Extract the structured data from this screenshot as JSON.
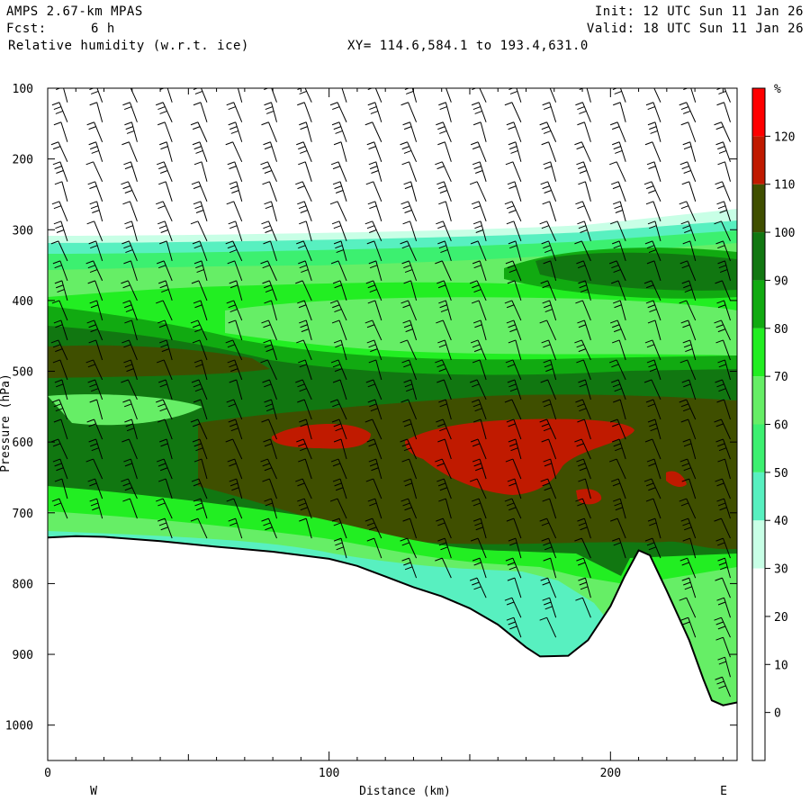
{
  "header": {
    "model": "AMPS 2.67-km MPAS",
    "fcst_label": "Fcst:",
    "fcst_value": "6 h",
    "field": "Relative humidity (w.r.t. ice)",
    "xy": "XY= 114.6,584.1 to 193.4,631.0",
    "init": "Init: 12 UTC Sun 11 Jan 26",
    "valid": "Valid: 18 UTC Sun 11 Jan 26"
  },
  "chart_data": {
    "type": "heatmap",
    "subtype": "vertical cross-section (filled contours with wind barbs)",
    "title": "Relative humidity (w.r.t. ice)",
    "xlabel": "Distance (km)",
    "ylabel": "Pressure (hPa)",
    "xlim": [
      0,
      245
    ],
    "ylim": [
      1050,
      100
    ],
    "x_ticks": [
      "0",
      "100",
      "200"
    ],
    "y_ticks": [
      "100",
      "200",
      "300",
      "400",
      "500",
      "600",
      "700",
      "800",
      "900",
      "1000"
    ],
    "x_end_labels": {
      "left": "W",
      "right": "E"
    },
    "colorbar": {
      "unit": "%",
      "levels": [
        0,
        10,
        20,
        30,
        40,
        50,
        60,
        70,
        80,
        90,
        100,
        110,
        120
      ],
      "level_labels": [
        "0",
        "10",
        "20",
        "30",
        "40",
        "50",
        "60",
        "70",
        "80",
        "90",
        "100",
        "110",
        "120"
      ],
      "colors": [
        "#ffffff",
        "#ffffff",
        "#ffffff",
        "#ffffff",
        "#c8ffe6",
        "#58f0c0",
        "#3cf070",
        "#66ee66",
        "#22ee22",
        "#11aa11",
        "#117711",
        "#3f4f00",
        "#c01a00",
        "#ff0000"
      ]
    },
    "moisture_top_hPa": [
      [
        0,
        278
      ],
      [
        50,
        276
      ],
      [
        100,
        275
      ],
      [
        150,
        275
      ],
      [
        200,
        272
      ],
      [
        245,
        268
      ]
    ],
    "terrain_hPa": [
      [
        0,
        735
      ],
      [
        10,
        733
      ],
      [
        20,
        734
      ],
      [
        40,
        740
      ],
      [
        60,
        748
      ],
      [
        80,
        755
      ],
      [
        100,
        765
      ],
      [
        110,
        775
      ],
      [
        120,
        790
      ],
      [
        130,
        805
      ],
      [
        140,
        818
      ],
      [
        150,
        835
      ],
      [
        160,
        858
      ],
      [
        170,
        890
      ],
      [
        175,
        903
      ],
      [
        185,
        902
      ],
      [
        192,
        880
      ],
      [
        200,
        832
      ],
      [
        205,
        790
      ],
      [
        210,
        753
      ],
      [
        214,
        760
      ],
      [
        220,
        810
      ],
      [
        228,
        880
      ],
      [
        233,
        935
      ],
      [
        236,
        965
      ],
      [
        240,
        972
      ],
      [
        245,
        968
      ]
    ],
    "high_rh_regions_over_110pct": [
      {
        "x_km": [
          80,
          115
        ],
        "p_hPa": [
          575,
          610
        ]
      },
      {
        "x_km": [
          128,
          210
        ],
        "p_hPa": [
          565,
          665
        ]
      },
      {
        "x_km": [
          190,
          198
        ],
        "p_hPa": [
          655,
          680
        ]
      },
      {
        "x_km": [
          220,
          228
        ],
        "p_hPa": [
          640,
          665
        ]
      }
    ]
  }
}
